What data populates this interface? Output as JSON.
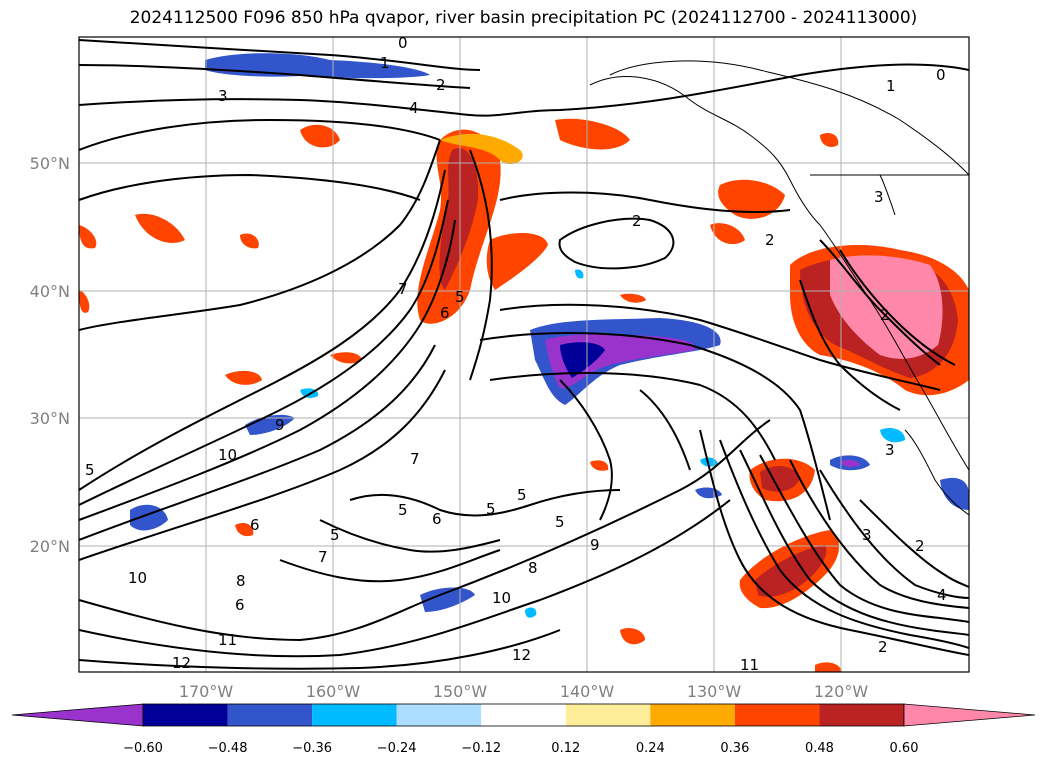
{
  "title": "2024112500 F096 850 hPa qvapor, river basin precipitation PC (2024112700 - 2024113000)",
  "lat_labels": [
    "50°N",
    "40°N",
    "30°N",
    "20°N"
  ],
  "lon_labels": [
    "170°W",
    "160°W",
    "150°W",
    "140°W",
    "130°W",
    "120°W"
  ],
  "colorbar": {
    "colors": [
      "#9933cc",
      "#000099",
      "#3355cc",
      "#00bbff",
      "#aaddff",
      "#ffffff",
      "#ffee99",
      "#ffaa00",
      "#ff4400",
      "#bb2222",
      "#ff88aa"
    ],
    "tick_labels": [
      "−0.60",
      "−0.48",
      "−0.36",
      "−0.24",
      "−0.12",
      "0.12",
      "0.24",
      "0.36",
      "0.48",
      "0.60"
    ]
  },
  "contour_labels": [
    "0",
    "1",
    "2",
    "3",
    "4",
    "5",
    "6",
    "7",
    "8",
    "9",
    "10",
    "11",
    "12"
  ],
  "colors": {
    "land_line": "#000000",
    "grid": "#b0b0b0",
    "positive_high": "#ff88aa",
    "positive_mid": "#bb2222",
    "positive_low": "#ff4400",
    "negative": "#3355cc"
  }
}
